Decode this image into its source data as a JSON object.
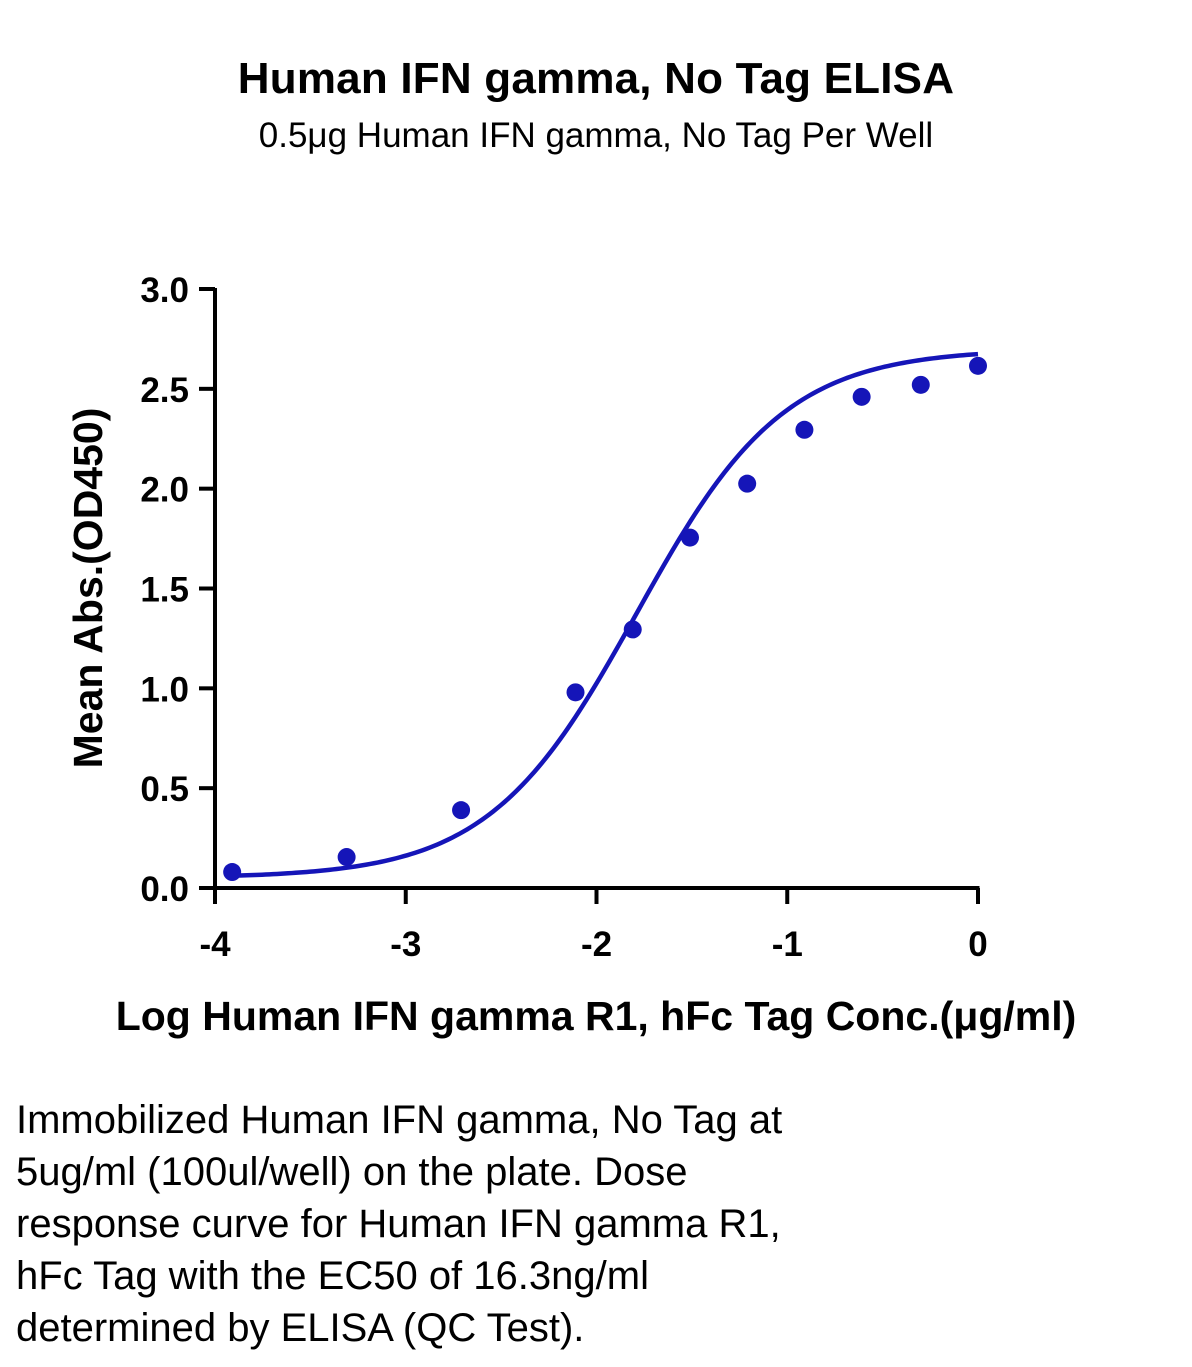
{
  "chart_data": {
    "type": "line",
    "title": "Human IFN gamma, No Tag ELISA",
    "subtitle": "0.5μg Human IFN gamma, No Tag Per Well",
    "xlabel": "Log Human IFN gamma R1, hFc Tag Conc.(μg/ml)",
    "ylabel": "Mean Abs.(OD450)",
    "xlim": [
      -4,
      0
    ],
    "ylim": [
      0,
      3.0
    ],
    "xticks": [
      "-4",
      "-3",
      "-2",
      "-1",
      "0"
    ],
    "yticks": [
      "0.0",
      "0.5",
      "1.0",
      "1.5",
      "2.0",
      "2.5",
      "3.0"
    ],
    "grid": false,
    "legend": "none",
    "series": [
      {
        "color": "#1515b8",
        "points": [
          {
            "x": -3.91,
            "y": 0.08
          },
          {
            "x": -3.31,
            "y": 0.155
          },
          {
            "x": -2.71,
            "y": 0.39
          },
          {
            "x": -2.11,
            "y": 0.98
          },
          {
            "x": -1.81,
            "y": 1.295
          },
          {
            "x": -1.51,
            "y": 1.755
          },
          {
            "x": -1.21,
            "y": 2.025
          },
          {
            "x": -0.91,
            "y": 2.295
          },
          {
            "x": -0.61,
            "y": 2.46
          },
          {
            "x": -0.3,
            "y": 2.52
          },
          {
            "x": 0.0,
            "y": 2.615
          }
        ],
        "fit": {
          "model": "4PL",
          "bottom": 0.05,
          "top": 2.7,
          "log_ec50": -1.79,
          "hill_slope": 1.12
        }
      }
    ]
  },
  "caption": "Immobilized Human IFN gamma, No Tag at\n5ug/ml (100ul/well) on the plate. Dose\nresponse curve for Human IFN gamma R1,\nhFc Tag with the EC50 of 16.3ng/ml\ndetermined by ELISA (QC Test)."
}
